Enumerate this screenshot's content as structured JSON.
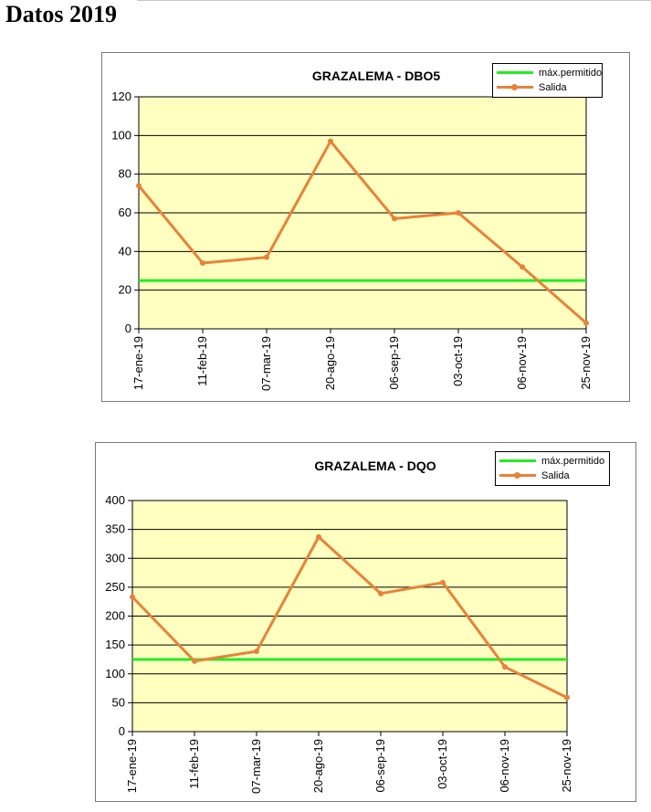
{
  "page": {
    "title": "Datos 2019"
  },
  "colors": {
    "plot_bg": "#ffffc0",
    "limit_line": "#22ee22",
    "series_line": "#e8823a",
    "gridline": "#000000",
    "axis": "#000000"
  },
  "chart_data": [
    {
      "type": "line",
      "title": "GRAZALEMA - DBO5",
      "xlabel": "",
      "ylabel": "",
      "categories": [
        "17-ene-19",
        "11-feb-19",
        "07-mar-19",
        "20-ago-19",
        "06-sep-19",
        "03-oct-19",
        "06-nov-19",
        "25-nov-19"
      ],
      "ylim": [
        0,
        120
      ],
      "yticks": [
        0,
        20,
        40,
        60,
        80,
        100,
        120
      ],
      "grid": true,
      "legend_position": "top-right",
      "series": [
        {
          "name": "máx.permitido",
          "color": "#22ee22",
          "markers": false,
          "values": [
            25,
            25,
            25,
            25,
            25,
            25,
            25,
            25
          ]
        },
        {
          "name": "Salida",
          "color": "#e8823a",
          "markers": true,
          "values": [
            74,
            34,
            37,
            97,
            57,
            60,
            32,
            3
          ]
        }
      ]
    },
    {
      "type": "line",
      "title": "GRAZALEMA - DQO",
      "xlabel": "",
      "ylabel": "",
      "categories": [
        "17-ene-19",
        "11-feb-19",
        "07-mar-19",
        "20-ago-19",
        "06-sep-19",
        "03-oct-19",
        "06-nov-19",
        "25-nov-19"
      ],
      "ylim": [
        0,
        400
      ],
      "yticks": [
        0,
        50,
        100,
        150,
        200,
        250,
        300,
        350,
        400
      ],
      "grid": true,
      "legend_position": "top-right",
      "series": [
        {
          "name": "máx.permitido",
          "color": "#22ee22",
          "markers": false,
          "values": [
            125,
            125,
            125,
            125,
            125,
            125,
            125,
            125
          ]
        },
        {
          "name": "Salida",
          "color": "#e8823a",
          "markers": true,
          "values": [
            233,
            122,
            139,
            337,
            239,
            258,
            112,
            59
          ]
        }
      ]
    }
  ]
}
